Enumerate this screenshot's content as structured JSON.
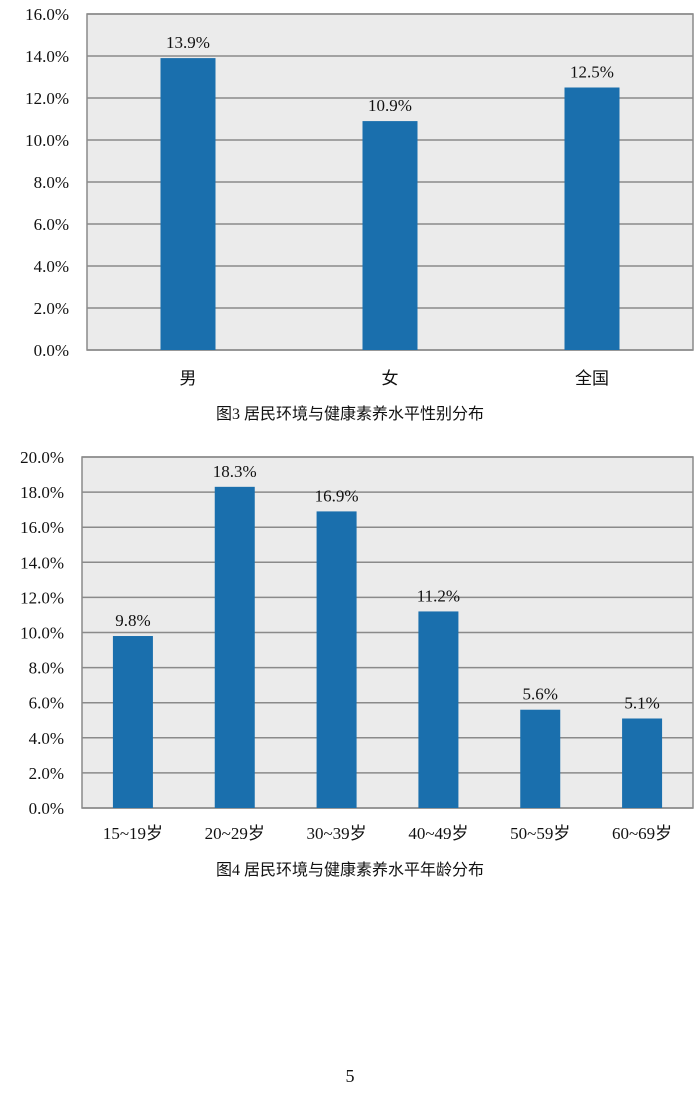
{
  "chart_data": [
    {
      "type": "bar",
      "title": "图3  居民环境与健康素养水平性别分布",
      "categories": [
        "男",
        "女",
        "全国"
      ],
      "values": [
        13.9,
        10.9,
        12.5
      ],
      "data_labels": [
        "13.9%",
        "10.9%",
        "12.5%"
      ],
      "xlabel": "",
      "ylabel": "",
      "ylim": [
        0,
        16
      ],
      "yticks": [
        "0.0%",
        "2.0%",
        "4.0%",
        "6.0%",
        "8.0%",
        "10.0%",
        "12.0%",
        "14.0%",
        "16.0%"
      ],
      "grid": true,
      "bar_color": "#1a6fad",
      "background": "#ebebeb"
    },
    {
      "type": "bar",
      "title": "图4  居民环境与健康素养水平年龄分布",
      "categories": [
        "15~19岁",
        "20~29岁",
        "30~39岁",
        "40~49岁",
        "50~59岁",
        "60~69岁"
      ],
      "values": [
        9.8,
        18.3,
        16.9,
        11.2,
        5.6,
        5.1
      ],
      "data_labels": [
        "9.8%",
        "18.3%",
        "16.9%",
        "11.2%",
        "5.6%",
        "5.1%"
      ],
      "xlabel": "",
      "ylabel": "",
      "ylim": [
        0,
        20
      ],
      "yticks": [
        "0.0%",
        "2.0%",
        "4.0%",
        "6.0%",
        "8.0%",
        "10.0%",
        "12.0%",
        "14.0%",
        "16.0%",
        "18.0%",
        "20.0%"
      ],
      "grid": true,
      "bar_color": "#1a6fad",
      "background": "#ebebeb"
    }
  ],
  "page_number": "5"
}
